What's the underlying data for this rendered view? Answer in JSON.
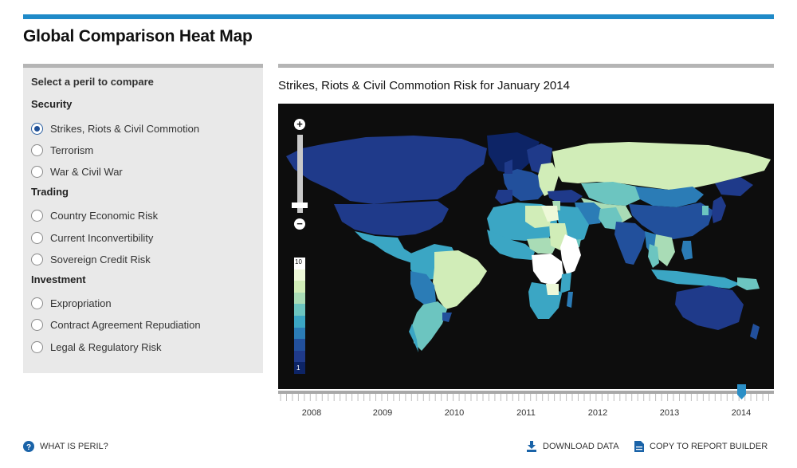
{
  "page": {
    "title": "Global Comparison Heat Map"
  },
  "sidebar": {
    "heading": "Select a peril to compare",
    "groups": [
      {
        "label": "Security",
        "options": [
          {
            "label": "Strikes, Riots & Civil Commotion",
            "selected": true
          },
          {
            "label": "Terrorism",
            "selected": false
          },
          {
            "label": "War & Civil War",
            "selected": false
          }
        ]
      },
      {
        "label": "Trading",
        "options": [
          {
            "label": "Country Economic Risk",
            "selected": false
          },
          {
            "label": "Current Inconvertibility",
            "selected": false
          },
          {
            "label": "Sovereign Credit Risk",
            "selected": false
          }
        ]
      },
      {
        "label": "Investment",
        "options": [
          {
            "label": "Expropriation",
            "selected": false
          },
          {
            "label": "Contract Agreement Repudiation",
            "selected": false
          },
          {
            "label": "Legal & Regulatory Risk",
            "selected": false
          }
        ]
      }
    ]
  },
  "map": {
    "title": "Strikes, Riots & Civil Commotion Risk for January 2014",
    "zoom_in_label": "+",
    "zoom_out_label": "−",
    "legend": {
      "max": "10",
      "min": "1",
      "colors": [
        "#ffffff",
        "#edf8d8",
        "#d1edb8",
        "#a9dcb6",
        "#6cc5c0",
        "#3ba6c4",
        "#2b7cb6",
        "#22509c",
        "#1f3a8a",
        "#0d2466"
      ]
    },
    "colors": {
      "background": "#0d0d0d",
      "accent": "#1f8ac8"
    }
  },
  "timeline": {
    "years": [
      "2008",
      "2009",
      "2010",
      "2011",
      "2012",
      "2013",
      "2014"
    ],
    "selected_year": "2014"
  },
  "footer": {
    "help_label": "WHAT IS PERIL?",
    "download_label": "DOWNLOAD DATA",
    "copy_label": "COPY TO REPORT BUILDER"
  }
}
